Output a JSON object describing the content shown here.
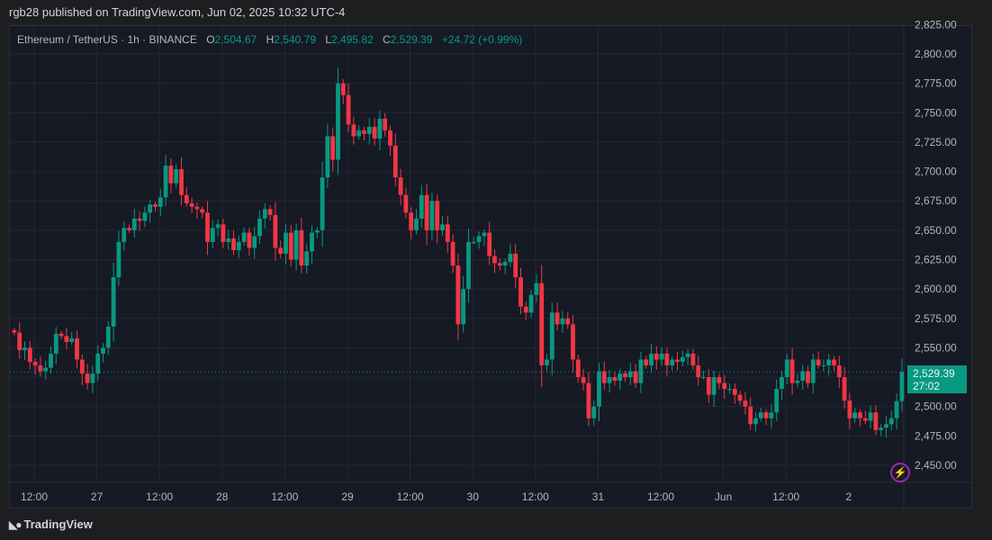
{
  "publish_line": "rgb28 published on TradingView.com, Jun 02, 2025 10:32 UTC-4",
  "legend": {
    "symbol": "Ethereum / TetherUS · 1h · BINANCE",
    "o_label": "O",
    "o": "2,504.67",
    "h_label": "H",
    "h": "2,540.79",
    "l_label": "L",
    "l": "2,495.82",
    "c_label": "C",
    "c": "2,529.39",
    "change": "+24.72 (+0.99%)"
  },
  "current_price": {
    "value": "2,529.39",
    "countdown": "27:02"
  },
  "brand": "TradingView",
  "icons": {
    "alert": "lightning-icon",
    "logo": "tradingview-logo-icon"
  },
  "colors": {
    "up": "#089981",
    "down": "#f23645",
    "background": "#161a25",
    "grid": "#232735"
  },
  "chart_data": {
    "type": "candlestick",
    "interval": "1h",
    "price_ticks": [
      "2,825.00",
      "2,800.00",
      "2,775.00",
      "2,750.00",
      "2,725.00",
      "2,700.00",
      "2,675.00",
      "2,650.00",
      "2,625.00",
      "2,600.00",
      "2,575.00",
      "2,550.00",
      "2,525.00",
      "2,500.00",
      "2,475.00",
      "2,450.00"
    ],
    "price_tick_values": [
      2825,
      2800,
      2775,
      2750,
      2725,
      2700,
      2675,
      2650,
      2625,
      2600,
      2575,
      2550,
      2525,
      2500,
      2475,
      2450
    ],
    "time_ticks": [
      "12:00",
      "27",
      "12:00",
      "28",
      "12:00",
      "29",
      "12:00",
      "30",
      "12:00",
      "31",
      "12:00",
      "Jun",
      "12:00",
      "2"
    ],
    "ylim": [
      2434,
      2826
    ],
    "first_open": 2565,
    "closes": [
      2563,
      2548,
      2550,
      2538,
      2535,
      2530,
      2533,
      2545,
      2562,
      2560,
      2555,
      2558,
      2540,
      2528,
      2520,
      2528,
      2545,
      2550,
      2568,
      2610,
      2640,
      2652,
      2650,
      2660,
      2658,
      2665,
      2672,
      2670,
      2678,
      2705,
      2690,
      2702,
      2680,
      2673,
      2670,
      2668,
      2665,
      2640,
      2652,
      2655,
      2640,
      2643,
      2633,
      2640,
      2648,
      2635,
      2645,
      2660,
      2668,
      2663,
      2635,
      2630,
      2648,
      2625,
      2650,
      2620,
      2632,
      2648,
      2650,
      2695,
      2730,
      2710,
      2775,
      2765,
      2740,
      2730,
      2735,
      2732,
      2738,
      2728,
      2745,
      2735,
      2722,
      2695,
      2680,
      2665,
      2650,
      2660,
      2680,
      2650,
      2675,
      2650,
      2655,
      2640,
      2620,
      2570,
      2600,
      2640,
      2640,
      2645,
      2648,
      2628,
      2622,
      2620,
      2623,
      2630,
      2610,
      2585,
      2580,
      2595,
      2605,
      2535,
      2540,
      2580,
      2570,
      2575,
      2570,
      2540,
      2525,
      2520,
      2490,
      2500,
      2530,
      2520,
      2525,
      2522,
      2528,
      2525,
      2530,
      2520,
      2540,
      2535,
      2545,
      2540,
      2545,
      2535,
      2540,
      2538,
      2542,
      2545,
      2535,
      2525,
      2525,
      2510,
      2525,
      2520,
      2515,
      2515,
      2510,
      2505,
      2500,
      2485,
      2490,
      2495,
      2490,
      2495,
      2515,
      2525,
      2540,
      2520,
      2522,
      2530,
      2520,
      2540,
      2535,
      2535,
      2540,
      2535,
      2525,
      2505,
      2490,
      2495,
      2490,
      2488,
      2495,
      2480,
      2482,
      2485,
      2490,
      2504.67,
      2529.39
    ],
    "last_candle": {
      "open": 2504.67,
      "high": 2540.79,
      "low": 2495.82,
      "close": 2529.39
    },
    "grid": true
  }
}
